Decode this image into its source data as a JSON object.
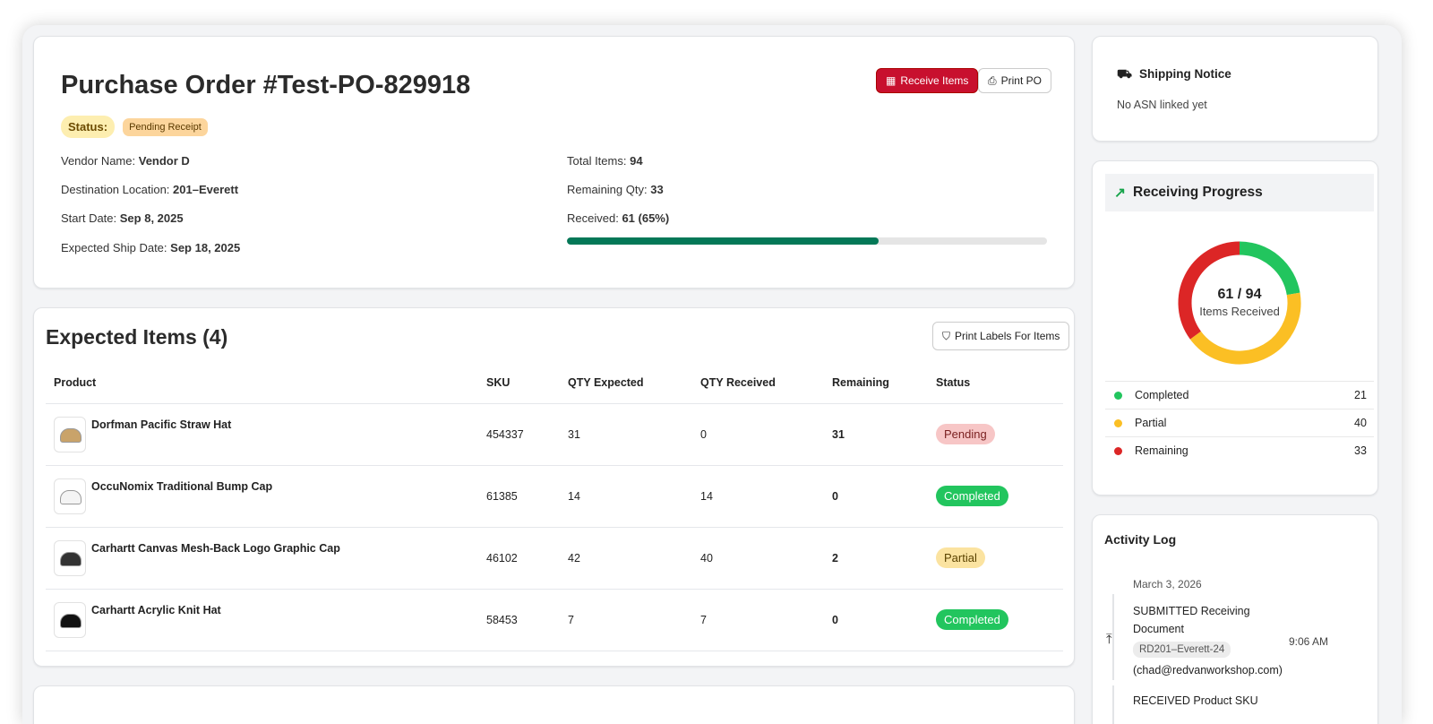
{
  "po": {
    "title": "Purchase Order #Test-PO-829918",
    "status_label": "Status:",
    "status_value": "Pending Receipt",
    "receive_button": "Receive Items",
    "print_button": "Print PO",
    "vendor_label": "Vendor Name:",
    "vendor": "Vendor D",
    "dest_label": "Destination Location:",
    "dest": "201–Everett",
    "start_label": "Start Date:",
    "start": "Sep 8, 2025",
    "ship_label": "Expected Ship Date:",
    "ship": "Sep 18, 2025",
    "total_label": "Total Items:",
    "total": "94",
    "remaining_label": "Remaining Qty:",
    "remaining": "33",
    "received_label": "Received:",
    "received": "61 (65%)",
    "progress_percent": 65
  },
  "items": {
    "title": "Expected Items (4)",
    "print_labels_button": "Print Labels For Items",
    "columns": [
      "Product",
      "SKU",
      "QTY Expected",
      "QTY Received",
      "Remaining",
      "Status"
    ],
    "rows": [
      {
        "product": "Dorfman Pacific Straw Hat",
        "sku": "454337",
        "expected": "31",
        "received": "0",
        "remaining": "31",
        "status": "Pending"
      },
      {
        "product": "OccuNomix Traditional Bump Cap",
        "sku": "61385",
        "expected": "14",
        "received": "14",
        "remaining": "0",
        "status": "Completed"
      },
      {
        "product": "Carhartt Canvas Mesh-Back Logo Graphic Cap",
        "sku": "46102",
        "expected": "42",
        "received": "40",
        "remaining": "2",
        "status": "Partial"
      },
      {
        "product": "Carhartt Acrylic Knit Hat",
        "sku": "58453",
        "expected": "7",
        "received": "7",
        "remaining": "0",
        "status": "Completed"
      }
    ]
  },
  "shipping": {
    "title": "Shipping Notice",
    "text": "No ASN linked yet"
  },
  "progress": {
    "title": "Receiving Progress",
    "center_value": "61 / 94",
    "center_label": "Items Received",
    "legend": [
      {
        "label": "Completed",
        "value": "21",
        "color": "#22c55e"
      },
      {
        "label": "Partial",
        "value": "40",
        "color": "#fbbf24"
      },
      {
        "label": "Remaining",
        "value": "33",
        "color": "#dc2626"
      }
    ]
  },
  "activity": {
    "title": "Activity Log",
    "date": "March 3, 2026",
    "entry_title": "SUBMITTED Receiving Document",
    "entry_tag": "RD201–Everett-24",
    "entry_user": "(chad@redvanworkshop.com)",
    "entry_time": "9:06 AM",
    "next_entry": "RECEIVED Product SKU"
  },
  "colors": {
    "accent": "#c8102e",
    "progress": "#047857"
  }
}
